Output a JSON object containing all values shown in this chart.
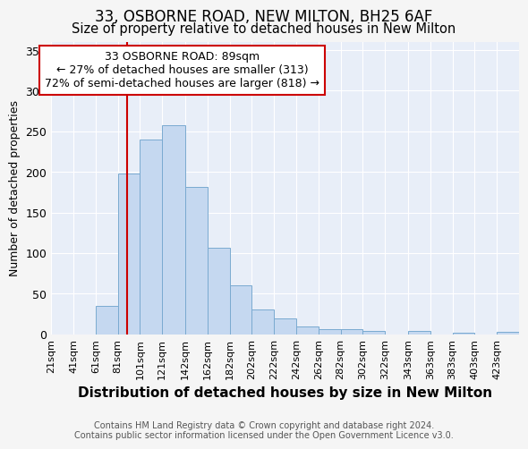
{
  "title1": "33, OSBORNE ROAD, NEW MILTON, BH25 6AF",
  "title2": "Size of property relative to detached houses in New Milton",
  "xlabel": "Distribution of detached houses by size in New Milton",
  "ylabel": "Number of detached properties",
  "footnote1": "Contains HM Land Registry data © Crown copyright and database right 2024.",
  "footnote2": "Contains public sector information licensed under the Open Government Licence v3.0.",
  "annotation_line1": "33 OSBORNE ROAD: 89sqm",
  "annotation_line2": "← 27% of detached houses are smaller (313)",
  "annotation_line3": "72% of semi-detached houses are larger (818) →",
  "bar_labels": [
    "21sqm",
    "41sqm",
    "61sqm",
    "81sqm",
    "101sqm",
    "121sqm",
    "142sqm",
    "162sqm",
    "182sqm",
    "202sqm",
    "222sqm",
    "242sqm",
    "262sqm",
    "282sqm",
    "302sqm",
    "322sqm",
    "343sqm",
    "363sqm",
    "383sqm",
    "403sqm",
    "423sqm"
  ],
  "bar_values": [
    0,
    0,
    35,
    198,
    240,
    258,
    182,
    107,
    60,
    30,
    20,
    10,
    6,
    6,
    4,
    0,
    4,
    0,
    2,
    0,
    3
  ],
  "bar_color": "#c5d8f0",
  "bar_edge_color": "#7aaad0",
  "red_line_x": 89,
  "bin_edges": [
    21,
    41,
    61,
    81,
    101,
    121,
    142,
    162,
    182,
    202,
    222,
    242,
    262,
    282,
    302,
    322,
    343,
    363,
    383,
    403,
    423,
    443
  ],
  "ylim": [
    0,
    360
  ],
  "yticks": [
    0,
    50,
    100,
    150,
    200,
    250,
    300,
    350
  ],
  "fig_bg_color": "#f5f5f5",
  "plot_bg_color": "#e8eef8",
  "grid_color": "#ffffff",
  "annotation_box_facecolor": "#ffffff",
  "annotation_box_edgecolor": "#cc0000",
  "red_line_color": "#cc0000",
  "title1_fontsize": 12,
  "title2_fontsize": 10.5,
  "xlabel_fontsize": 11,
  "ylabel_fontsize": 9,
  "tick_fontsize": 8,
  "annotation_fontsize": 9,
  "footnote_fontsize": 7
}
